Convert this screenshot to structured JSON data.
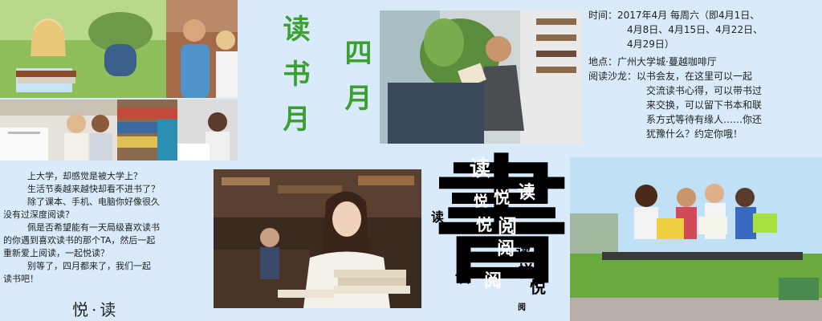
{
  "title_vertical_1": "读书月",
  "title_vertical_2": "四月",
  "info": {
    "time_label": "时间：",
    "time_value_1": "2017年4月 每周六（即4月1日、",
    "time_value_2": "4月8日、4月15日、4月22日、",
    "time_value_3": "4月29日）",
    "place_label": "地点：",
    "place_value": "广州大学城·蔓越咖啡厅",
    "salon_label": "阅读沙龙：",
    "salon_value_1": "以书会友，在这里可以一起",
    "salon_value_2": "交流读书心得，可以带书过",
    "salon_value_3": "来交换，可以留下书本和联",
    "salon_value_4": "系方式等待有缘人……你还",
    "salon_value_5": "犹豫什么？约定你哦！"
  },
  "paragraph": {
    "line_1": "上大学，却感觉是被大学上？",
    "line_2": "生活节奏越来越快却看不进书了？",
    "line_3": "除了课本、手机、电脑你好像很久",
    "line_4": "没有过深度阅读？",
    "line_5": "佩是否希望能有一天局级喜欢读书",
    "line_6": "的你遇到喜欢读书的那个TA，然后一起",
    "line_7": "重新爱上阅读，一起悦读？",
    "line_8": "别等了，四月都来了，我们一起",
    "line_9": "读书吧！"
  },
  "signature": "悦·读",
  "calligraphy": {
    "big": "書",
    "chars": [
      "读",
      "悦",
      "读",
      "悦",
      "读",
      "阅",
      "悦",
      "阅",
      "读",
      "悦",
      "阅",
      "读",
      "悦",
      "阅"
    ]
  },
  "photos": {
    "lawn_girl": "lawn-girl-photo",
    "campus_students": "campus-students-photo",
    "walking_student": "walking-student-photo",
    "library_group": "library-group-photo",
    "bookshelf_girl": "bookshelf-girl-photo",
    "man_reading": "man-reading-photo",
    "woman_thinking": "woman-thinking-photo",
    "friends_bench": "friends-bench-photo"
  }
}
